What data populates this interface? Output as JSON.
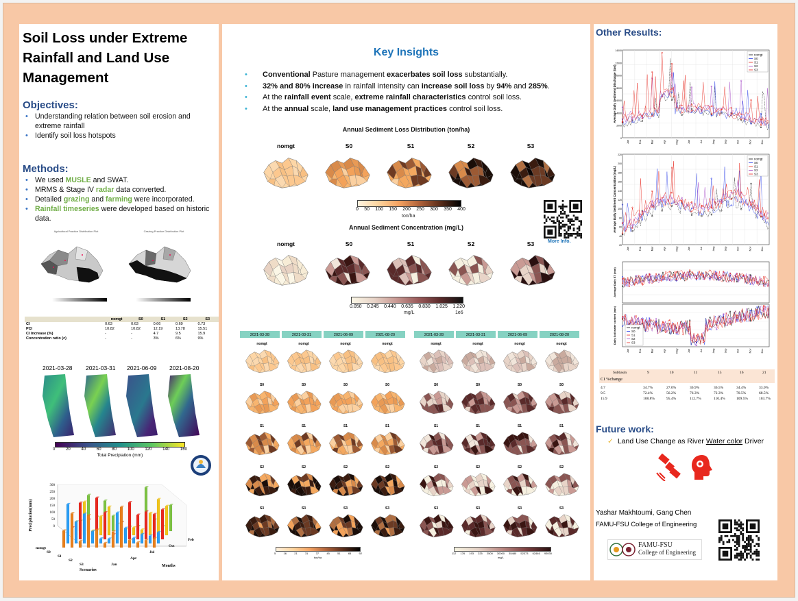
{
  "poster": {
    "title": "Soil Loss under Extreme Rainfall and Land Use Management",
    "objectives": {
      "heading": "Objectives:",
      "items": [
        "Understanding relation between soil erosion and extreme rainfall",
        "Identify soil loss hotspots"
      ]
    },
    "methods": {
      "heading": "Methods:",
      "item1": {
        "pre": "We used ",
        "hl": "MUSLE",
        "post": " and SWAT."
      },
      "item2": {
        "pre": "MRMS & Stage IV ",
        "hl": "radar",
        "post": " data converted."
      },
      "item3": {
        "pre": "Detailed ",
        "hl1": "grazing",
        "mid": " and ",
        "hl2": "farming",
        "post": " were incorporated."
      },
      "item4": {
        "hl": "Rainfall timeseries",
        "post": " were developed based on historic data."
      }
    },
    "practice_maps": {
      "left_title": "Agricultural Practice Distribution Plot",
      "right_title": "Grazing Practice Distribution Plot"
    },
    "ci_table": {
      "columns": [
        "",
        "nomgt",
        "S0",
        "S1",
        "S2",
        "S3"
      ],
      "rows": [
        [
          "CI",
          "0.63",
          "0.63",
          "0.66",
          "0.69",
          "0.73"
        ],
        [
          "PCI",
          "10.82",
          "10.82",
          "12.19",
          "13.78",
          "15.51"
        ],
        [
          "CI Increase (%)",
          "-",
          "-",
          "4.7",
          "9.5",
          "15.9"
        ],
        [
          "Concentration ratio (c)",
          "-",
          "-",
          "3%",
          "6%",
          "9%"
        ]
      ]
    },
    "precip_maps": {
      "dates": [
        "2021-03-28",
        "2021-03-31",
        "2021-06-09",
        "2021-08-20"
      ],
      "ticks": [
        "0",
        "20",
        "40",
        "60",
        "80",
        "100",
        "120",
        "140",
        "160"
      ],
      "label": "Total Precipiation (mm)"
    },
    "bar3d": {
      "ylabel": "Precipitation(mm)",
      "zticks": [
        "300",
        "250",
        "200",
        "150",
        "100",
        "50",
        "0"
      ],
      "scenarios": [
        "nomgt",
        "S0",
        "S1",
        "S2",
        "S3"
      ],
      "months": [
        "Jan",
        "Apr",
        "Jul",
        "Oct",
        "Feb"
      ],
      "xlabel": "Scenarios",
      "mlabel": "Months"
    },
    "key_insights": {
      "heading": "Key Insights",
      "b1": {
        "s1": "Conventional",
        "t1": " Pasture management ",
        "s2": "exacerbates soil loss",
        "t2": " substantially."
      },
      "b2": {
        "s1": "32% and 80% increase",
        "t1": " in rainfall intensity can ",
        "s2": "increase soil loss",
        "t2": " by ",
        "s3": "94%",
        "t3": " and ",
        "s4": "285%",
        "t4": "."
      },
      "b3": {
        "t1": "At the ",
        "s1": "rainfall event",
        "t2": " scale, ",
        "s2": "extreme rainfall characteristics",
        "t3": " control soil loss."
      },
      "b4": {
        "t1": "At the ",
        "s1": "annual",
        "t2": " scale, ",
        "s2": "land use management practices",
        "t3": " control soil loss."
      }
    },
    "sediment_loss": {
      "title": "Annual Sediment Loss Distribution (ton/ha)",
      "labels": [
        "nomgt",
        "S0",
        "S1",
        "S2",
        "S3"
      ],
      "ticks": [
        "0",
        "50",
        "100",
        "150",
        "200",
        "250",
        "300",
        "350",
        "400"
      ],
      "unit": "ton/ha"
    },
    "sediment_conc": {
      "title": "Annual Sediment Concentration (mg/L)",
      "labels": [
        "nomgt",
        "S0",
        "S1",
        "S2",
        "S3"
      ],
      "ticks": [
        "0.050",
        "0.245",
        "0.440",
        "0.635",
        "0.830",
        "1.025",
        "1.220"
      ],
      "unit": "mg/L",
      "exp": "1e6"
    },
    "more_info": "More Info.",
    "event_grid": {
      "dates": [
        "2021-03-28",
        "2021-03-31",
        "2021-06-09",
        "2021-08-20"
      ],
      "rows": [
        "nomgt",
        "S0",
        "S1",
        "S2",
        "S3"
      ],
      "left_ticks": [
        "5",
        "16",
        "21",
        "31",
        "37",
        "45",
        "51",
        "65",
        "92"
      ],
      "left_unit": "ton/ha",
      "right_ticks": [
        "112",
        "176",
        "193",
        "225",
        "2500",
        "30000",
        "35480",
        "52373",
        "62446",
        "93930"
      ],
      "right_unit": "mg/L"
    },
    "other_results": {
      "heading": "Other Results:",
      "legend": [
        "nomgt",
        "S0",
        "S1",
        "S2",
        "S3"
      ],
      "chart1_ylabel": "Average Daily Sediment Discharge (ton)",
      "chart1_ticks": [
        "14000",
        "12000",
        "10000",
        "8000",
        "6000",
        "4000",
        "2000",
        "0"
      ],
      "chart2_ylabel": "Average Daily Sediment Concentration (mg/L)",
      "chart2_ticks": [
        "220",
        "200",
        "180",
        "160",
        "140",
        "120",
        "100",
        "80",
        "60",
        "40",
        "20"
      ],
      "chart3_ylabel": "Average Daily ET (mm)",
      "chart4_ylabel": "Daily Soil water content (mm)",
      "months": [
        "Jan",
        "Feb",
        "Mar",
        "Apr",
        "May",
        "Jun",
        "Jul",
        "Aug",
        "Sep",
        "Oct",
        "Nov",
        "Dec"
      ]
    },
    "subbasin_table": {
      "head": [
        "Subbasin",
        "9",
        "10",
        "11",
        "15",
        "16",
        "21"
      ],
      "sub": "CI %change",
      "rows": [
        [
          "4.7",
          "34.7%",
          "27.0%",
          "36.9%",
          "36.5%",
          "34.4%",
          "33.0%"
        ],
        [
          "9.5",
          "72.4%",
          "56.2%",
          "76.3%",
          "72.3%",
          "70.5%",
          "68.5%"
        ],
        [
          "15.9",
          "108.8%",
          "95.4%",
          "112.7%",
          "110.4%",
          "109.5%",
          "103.7%"
        ]
      ]
    },
    "future": {
      "heading": "Future work:",
      "check": "✓",
      "text_pre": "Land Use Change as River ",
      "text_link": "Water color",
      "text_post": " Driver"
    },
    "authors": "Yashar Makhtoumi, Gang Chen",
    "affiliation": "FAMU-FSU College of Engineering",
    "logo_text1": "FAMU-FSU",
    "logo_text2": "College of Engineering",
    "colors": {
      "accent_blue": "#2a4d88",
      "insight_blue": "#1e74b9",
      "green": "#70ad47",
      "poster_bg": "#f8c8a6"
    }
  }
}
